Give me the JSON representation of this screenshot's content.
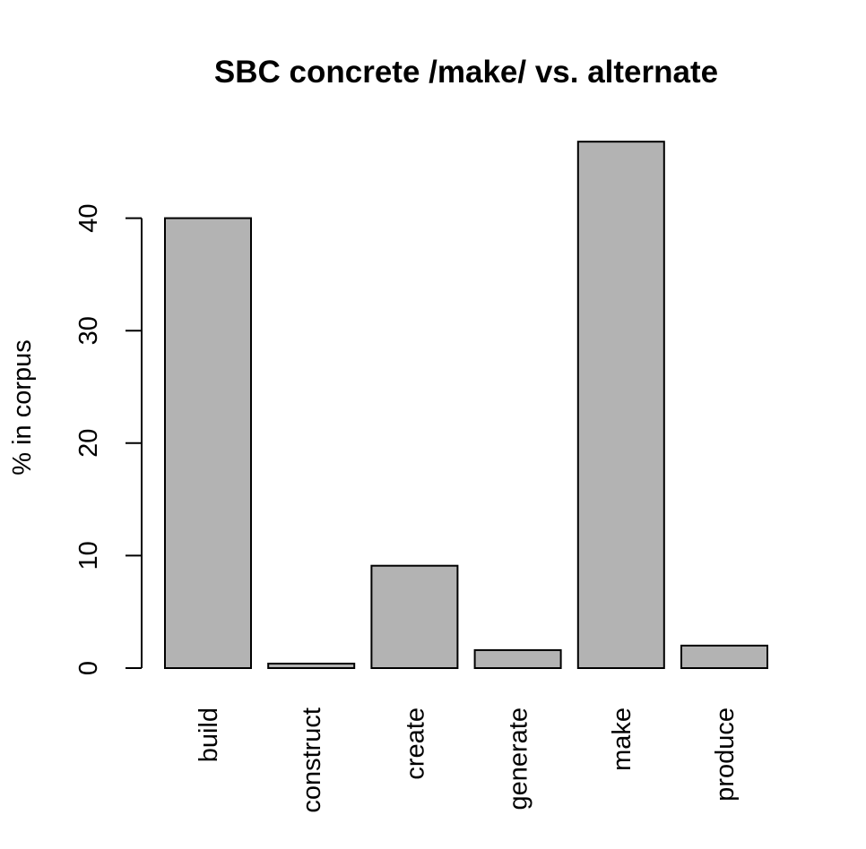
{
  "chart_data": {
    "type": "bar",
    "title": "SBC concrete /make/ vs. alternate",
    "xlabel": "",
    "ylabel": "% in corpus",
    "categories": [
      "build",
      "construct",
      "create",
      "generate",
      "make",
      "produce"
    ],
    "values": [
      40.0,
      0.4,
      9.1,
      1.6,
      46.8,
      2.0
    ],
    "yticks": [
      0,
      10,
      20,
      30,
      40
    ],
    "ylim": [
      0,
      48
    ],
    "bar_color": "#b3b3b3",
    "grid": false,
    "legend": "none"
  }
}
